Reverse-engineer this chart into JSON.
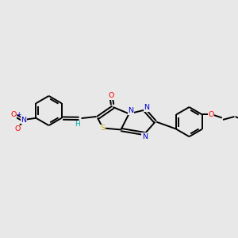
{
  "background_color": "#e8e8e8",
  "bond_color": "#000000",
  "atom_colors": {
    "N": "#0000cc",
    "O": "#ff0000",
    "S": "#ccaa00",
    "H": "#00aaaa",
    "C": "#000000"
  },
  "figsize": [
    3.0,
    3.0
  ],
  "dpi": 100
}
